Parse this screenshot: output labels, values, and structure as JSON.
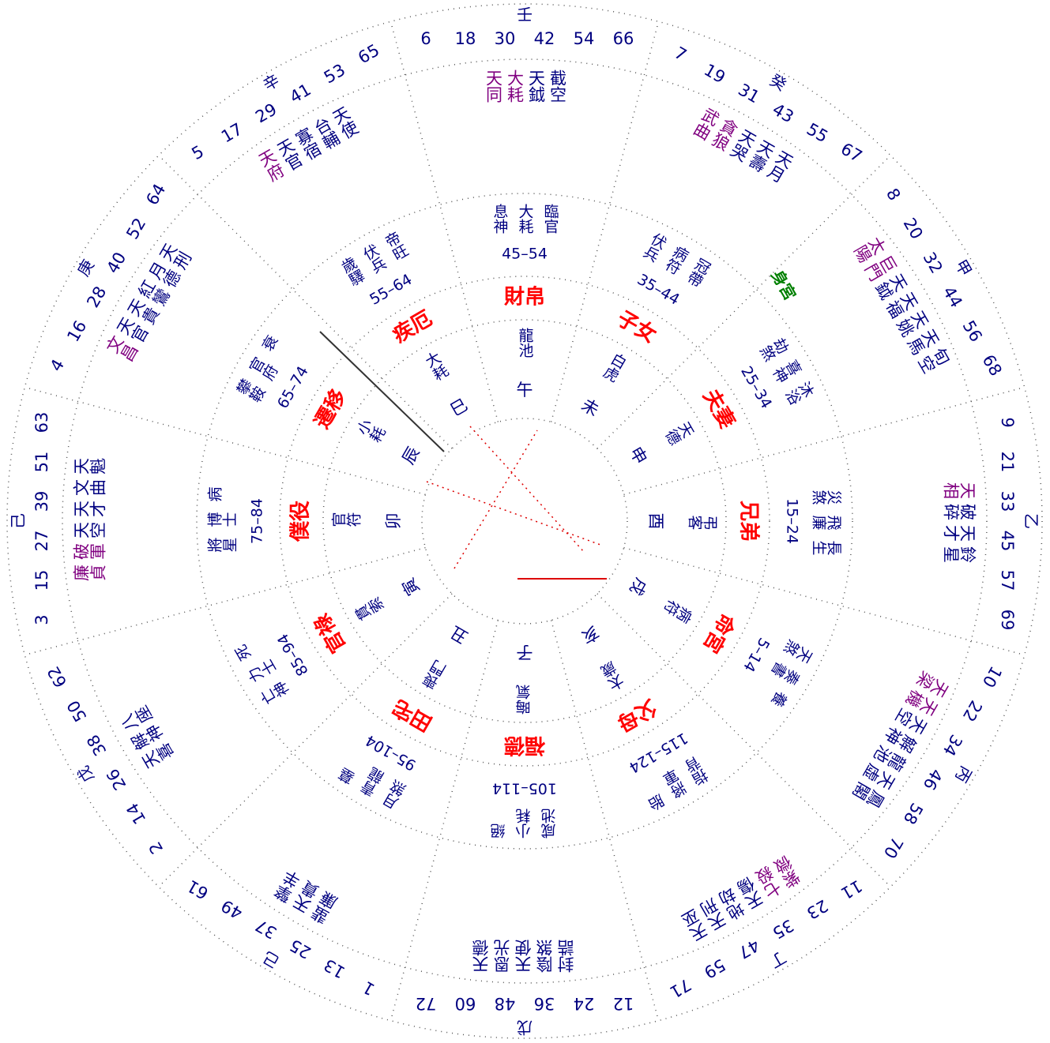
{
  "palaces": [
    {
      "name": "財帛",
      "branch": "午",
      "stem": "壬",
      "ages": [
        6,
        18,
        30,
        42,
        54,
        66
      ],
      "range": "45–54",
      "stars": [
        "截空",
        "天鉞"
      ],
      "major": [
        "大耗",
        "天同"
      ],
      "small": [
        "臨官",
        "大耗",
        "息神"
      ],
      "mid": [
        "龍池"
      ]
    },
    {
      "name": "子女",
      "branch": "未",
      "stem": "癸",
      "ages": [
        7,
        19,
        31,
        43,
        55,
        67
      ],
      "range": "35–44",
      "stars": [
        "天月",
        "天壽",
        "天哭"
      ],
      "major": [
        "貪狼",
        "武曲"
      ],
      "small": [
        "冠帶",
        "病符",
        "伏兵"
      ],
      "mid": [
        "白虎"
      ]
    },
    {
      "name": "夫妻",
      "branch": "申",
      "stem": "甲",
      "ages": [
        8,
        20,
        32,
        44,
        56,
        68
      ],
      "range": "25–34",
      "stars": [
        "旬空",
        "天馬",
        "天姚",
        "天福",
        "天鉞"
      ],
      "major": [
        "巨門",
        "太陽"
      ],
      "small": [
        "沐浴",
        "喜神",
        "劫煞"
      ],
      "mid": [
        "天德"
      ],
      "body": "身宮"
    },
    {
      "name": "兄弟",
      "branch": "酉",
      "stem": "乙",
      "ages": [
        9,
        21,
        33,
        45,
        57,
        69
      ],
      "range": "15–24",
      "stars": [
        "鈴星",
        "天才",
        "破碎"
      ],
      "major": [
        "天相"
      ],
      "small": [
        "長生",
        "飛廉",
        "災煞"
      ],
      "mid": [
        "弔客"
      ]
    },
    {
      "name": "命宮",
      "branch": "戌",
      "stem": "丙",
      "ages": [
        10,
        22,
        34,
        46,
        58,
        70
      ],
      "range": "5–14",
      "stars": [
        "鳳閣",
        "天虛",
        "龍池",
        "解神",
        "天空"
      ],
      "major": [
        "天機",
        "天梁"
      ],
      "small": [
        "養",
        "奏書",
        "天煞"
      ],
      "mid": [
        "病符"
      ]
    },
    {
      "name": "父母",
      "branch": "亥",
      "stem": "丁",
      "ages": [
        11,
        23,
        35,
        47,
        59,
        71
      ],
      "range": "115–124",
      "stars": [
        "天巫",
        "天刑",
        "地劫",
        "天傷"
      ],
      "major": [
        "七殺",
        "紫微"
      ],
      "small": [
        "胎",
        "將軍",
        "指背"
      ],
      "mid": [
        "太歲"
      ]
    },
    {
      "name": "福德",
      "branch": "子",
      "stem": "戊",
      "ages": [
        12,
        24,
        36,
        48,
        60,
        72
      ],
      "range": "105–114",
      "stars": [
        "天德",
        "恩光",
        "天使",
        "陰煞",
        "封誥"
      ],
      "major": [],
      "small": [
        "絕",
        "小耗",
        "咸池"
      ],
      "mid": [
        "晦氣"
      ]
    },
    {
      "name": "田宅",
      "branch": "丑",
      "stem": "己",
      "ages": [
        1,
        13,
        25,
        37,
        49,
        61
      ],
      "range": "95–104",
      "stars": [
        "擎羊",
        "天貴",
        "蜚廉"
      ],
      "major": [],
      "small": [
        "墓",
        "青龍",
        "月煞"
      ],
      "mid": [
        "喪門"
      ]
    },
    {
      "name": "官祿",
      "branch": "寅",
      "stem": "戊",
      "ages": [
        2,
        14,
        26,
        38,
        50,
        62
      ],
      "range": "85–94",
      "stars": [
        "八座",
        "解神",
        "天喜"
      ],
      "major": [],
      "small": [
        "死",
        "力士",
        "亡神"
      ],
      "mid": [
        "貫索"
      ]
    },
    {
      "name": "僕役",
      "branch": "卯",
      "stem": "己",
      "ages": [
        3,
        15,
        27,
        39,
        51,
        63
      ],
      "range": "75–84",
      "stars": [
        "天魁",
        "文曲",
        "天才",
        "天空"
      ],
      "major": [
        "破軍",
        "廉貞"
      ],
      "small": [
        "病",
        "博士",
        "將星"
      ],
      "mid": [
        "官符"
      ]
    },
    {
      "name": "遷移",
      "branch": "辰",
      "stem": "庚",
      "ages": [
        4,
        16,
        28,
        40,
        52,
        64
      ],
      "range": "65–74",
      "stars": [
        "天刑",
        "月德",
        "紅鸞",
        "天貴",
        "天官"
      ],
      "major": [
        "文昌"
      ],
      "small": [
        "衰",
        "官府",
        "攀鞍"
      ],
      "mid": [
        "小耗"
      ]
    },
    {
      "name": "疾厄",
      "branch": "巳",
      "stem": "辛",
      "ages": [
        5,
        17,
        29,
        41,
        53,
        65
      ],
      "range": "55–64",
      "stars": [
        "天使",
        "台輔",
        "寡宿",
        "天官"
      ],
      "major": [
        "天府"
      ],
      "small": [
        "帝旺",
        "伏兵",
        "歲驛"
      ],
      "mid": [
        "大耗"
      ]
    }
  ]
}
